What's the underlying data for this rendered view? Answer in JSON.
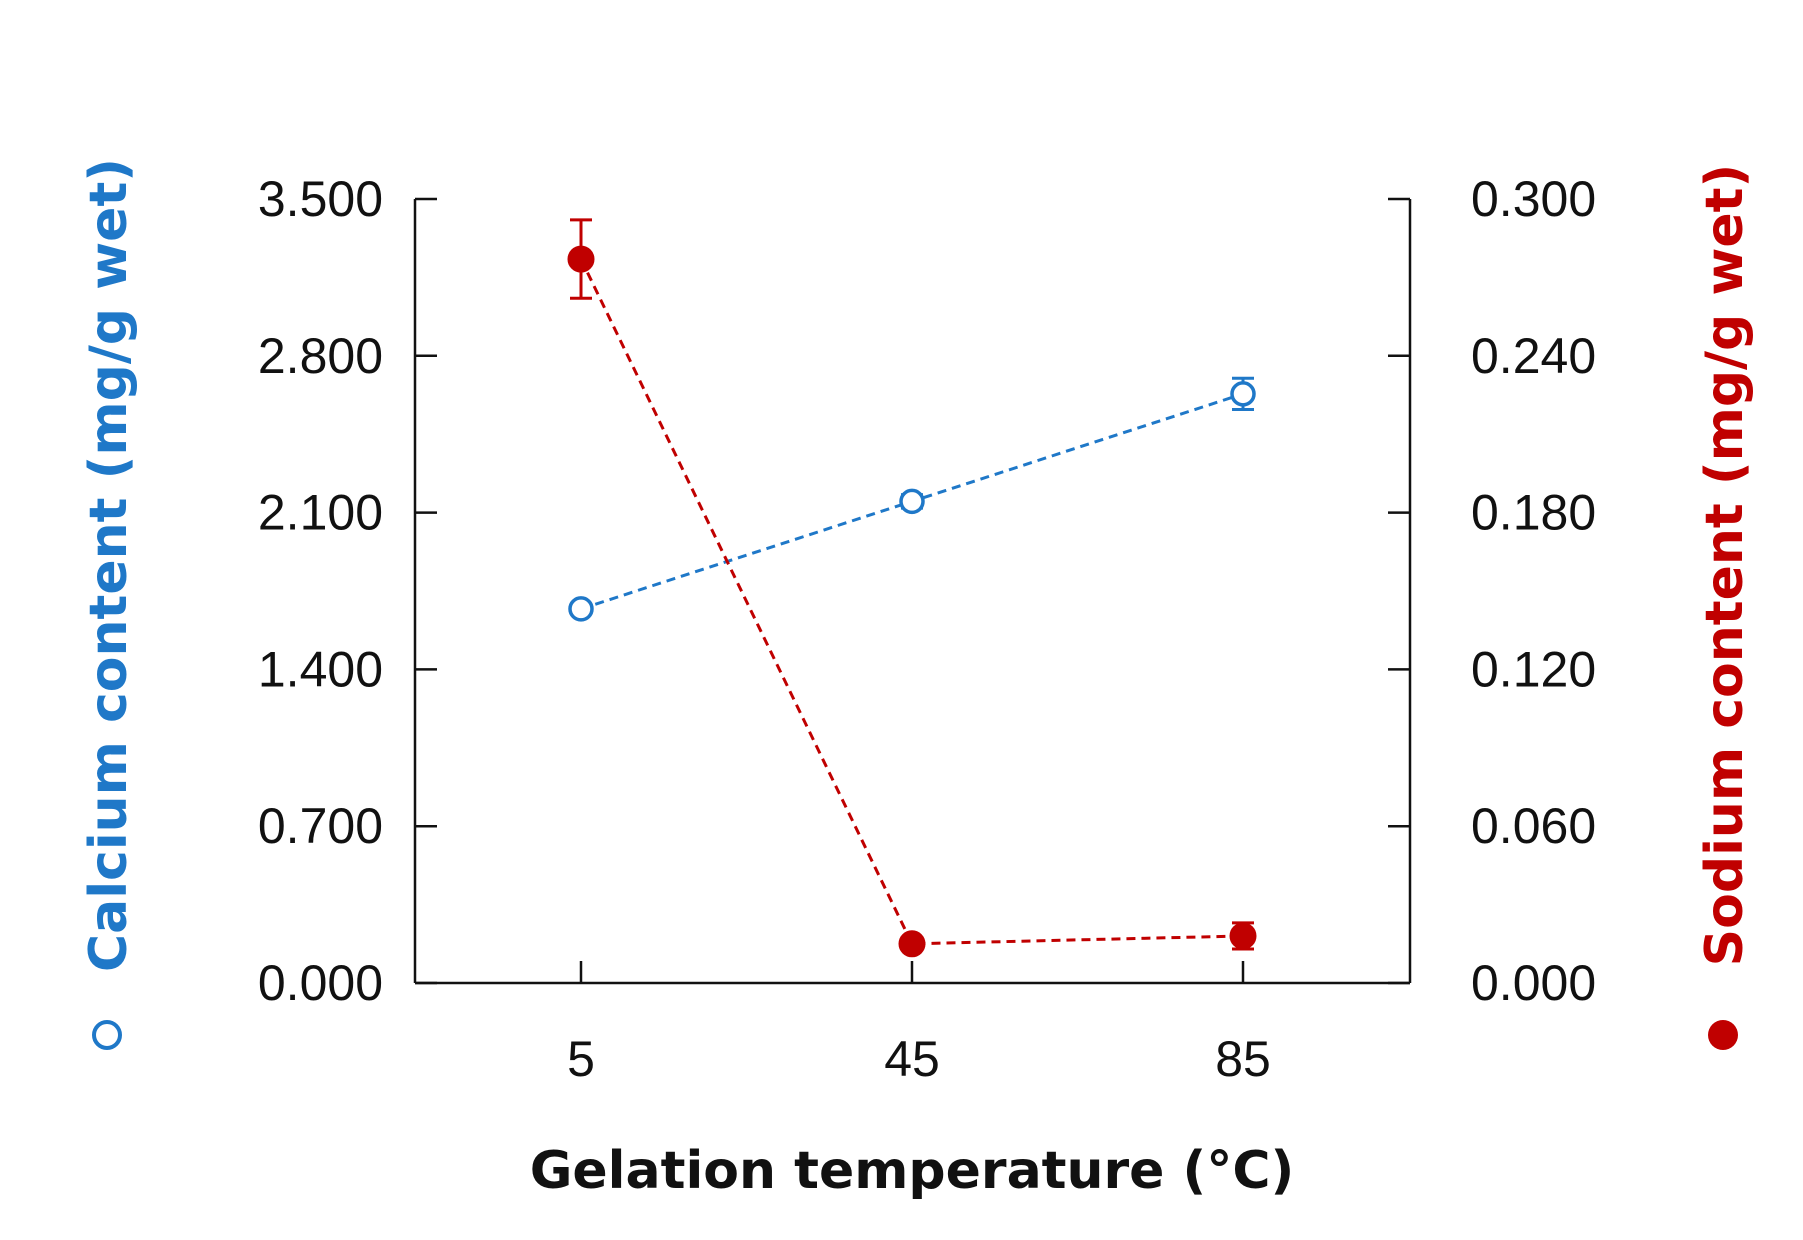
{
  "chart_data": {
    "type": "line",
    "title": "",
    "categories": [
      "5",
      "45",
      "85"
    ],
    "x": [
      5,
      45,
      85
    ],
    "xlabel": "Gelation temperature (°C)",
    "colors": {
      "calcium": "#1f78c8",
      "sodium": "#c00000",
      "axis": "#111111"
    },
    "left_axis": {
      "label": "Calcium content (mg/g wet)",
      "ylim": [
        0,
        3.5
      ],
      "ticks": [
        0,
        0.7,
        1.4,
        2.1,
        2.8,
        3.5
      ],
      "tick_labels": [
        "0.000",
        "0.700",
        "1.400",
        "2.100",
        "2.800",
        "3.500"
      ]
    },
    "right_axis": {
      "label": "Sodium content (mg/g wet)",
      "ylim": [
        0,
        0.3
      ],
      "ticks": [
        0,
        0.06,
        0.12,
        0.18,
        0.24,
        0.3
      ],
      "tick_labels": [
        "0.000",
        "0.060",
        "0.120",
        "0.180",
        "0.240",
        "0.300"
      ]
    },
    "series": [
      {
        "name": "Calcium content (mg/g wet)",
        "axis": "left",
        "marker": "open-circle",
        "line_style": "dashed",
        "values": [
          1.67,
          2.15,
          2.63
        ],
        "errors": [
          0.02,
          0.03,
          0.07
        ]
      },
      {
        "name": "Sodium content (mg/g wet)",
        "axis": "right",
        "marker": "filled-circle",
        "line_style": "dashed",
        "values": [
          0.277,
          0.015,
          0.018
        ],
        "errors": [
          0.015,
          0.002,
          0.005
        ]
      }
    ],
    "grid": false,
    "legend": "none"
  }
}
